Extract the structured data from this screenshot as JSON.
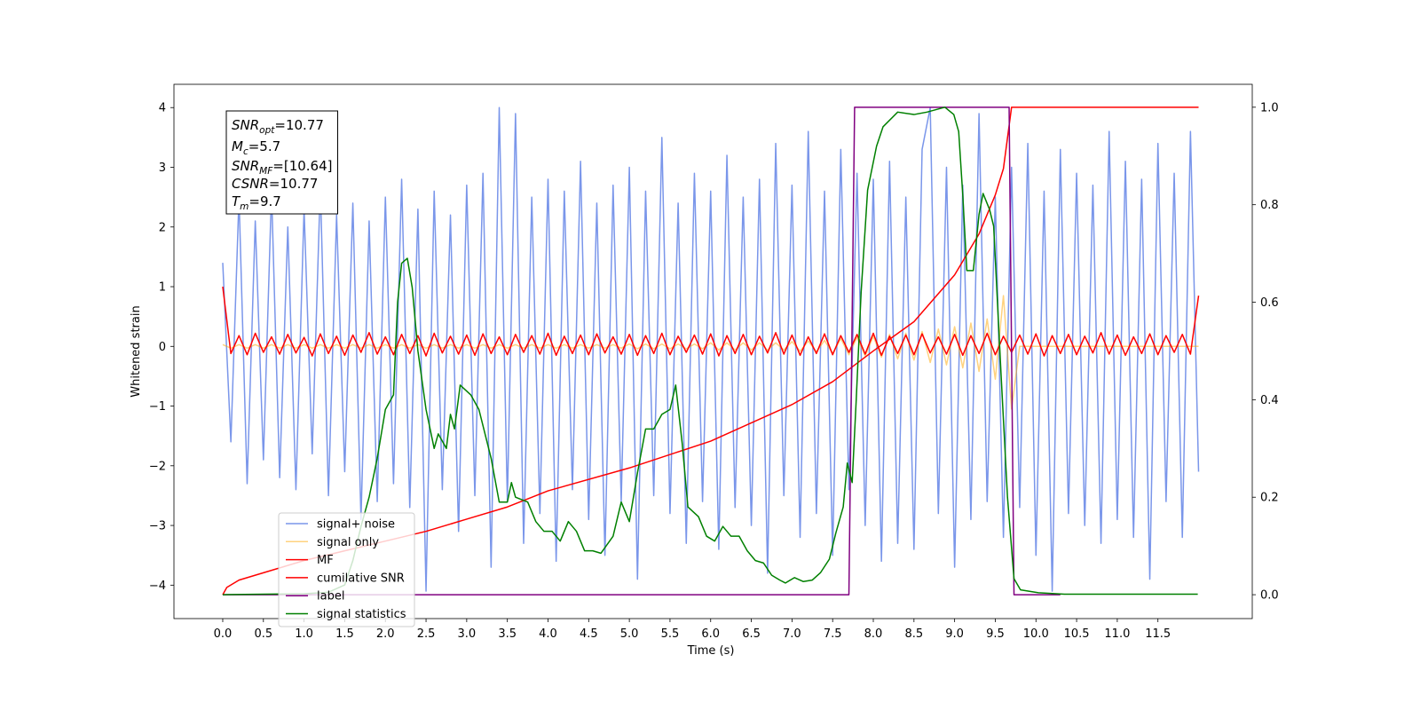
{
  "chart_data": {
    "type": "line",
    "xlabel": "Time (s)",
    "ylabel": "Whitened strain",
    "xlim": [
      -0.6,
      12.66
    ],
    "ylim": [
      -4.56,
      4.39
    ],
    "y2lim": [
      -0.049,
      1.047
    ],
    "xticks": [
      {
        "value": 0,
        "label": "0.0"
      },
      0.5,
      {
        "value": 1,
        "label": "1.0"
      },
      1.5,
      {
        "value": 2,
        "label": "2.0"
      },
      2.5,
      {
        "value": 3,
        "label": "3.0"
      },
      3.5,
      {
        "value": 4,
        "label": "4.0"
      },
      4.5,
      {
        "value": 5,
        "label": "5.0"
      },
      5.5,
      {
        "value": 6,
        "label": "6.0"
      },
      6.5,
      {
        "value": 7,
        "label": "7.0"
      },
      7.5,
      {
        "value": 8,
        "label": "8.0"
      },
      8.5,
      {
        "value": 9,
        "label": "9.0"
      },
      9.5,
      {
        "value": 10,
        "label": "10.0"
      },
      10.5,
      {
        "value": 11,
        "label": "11.0"
      },
      11.5
    ],
    "yticks": [
      {
        "value": -4,
        "label": "−4"
      },
      {
        "value": -3,
        "label": "−3"
      },
      {
        "value": -2,
        "label": "−2"
      },
      {
        "value": -1,
        "label": "−1"
      },
      0,
      1,
      2,
      3,
      4
    ],
    "y2ticks": [
      {
        "value": 0,
        "label": "0.0"
      },
      0.2,
      0.4,
      0.6,
      0.8,
      {
        "value": 1,
        "label": "1.0"
      }
    ],
    "legend": "lower left",
    "annotations": [
      {
        "symbol": "SNR",
        "subscript": "opt",
        "text": "=10.77"
      },
      {
        "symbol": "M",
        "subscript": "c",
        "text": "=5.7"
      },
      {
        "symbol": "SNR",
        "subscript": "MF",
        "text": "=[10.64]"
      },
      {
        "symbol": "CSNR",
        "text": "=10.77"
      },
      {
        "symbol": "T",
        "subscript": "m",
        "text": "=9.7"
      }
    ],
    "x": [
      0,
      0.1,
      0.2,
      0.3,
      0.4,
      0.5,
      0.6,
      0.7,
      0.8,
      0.9,
      1,
      1.1,
      1.2,
      1.3,
      1.4,
      1.5,
      1.6,
      1.7,
      1.8,
      1.9,
      2,
      2.1,
      2.2,
      2.3,
      2.4,
      2.5,
      2.6,
      2.7,
      2.8,
      2.9,
      3,
      3.1,
      3.2,
      3.3,
      3.4,
      3.5,
      3.6,
      3.7,
      3.8,
      3.9,
      4,
      4.1,
      4.2,
      4.3,
      4.4,
      4.5,
      4.6,
      4.7,
      4.8,
      4.9,
      5,
      5.1,
      5.2,
      5.3,
      5.4,
      5.5,
      5.6,
      5.7,
      5.8,
      5.9,
      6,
      6.1,
      6.2,
      6.3,
      6.4,
      6.5,
      6.6,
      6.7,
      6.8,
      6.9,
      7,
      7.1,
      7.2,
      7.3,
      7.4,
      7.5,
      7.6,
      7.7,
      7.8,
      7.9,
      8,
      8.1,
      8.2,
      8.3,
      8.4,
      8.5,
      8.6,
      8.7,
      8.8,
      8.9,
      9,
      9.1,
      9.2,
      9.3,
      9.4,
      9.5,
      9.6,
      9.7,
      9.8,
      9.9,
      10,
      10.1,
      10.2,
      10.3,
      10.4,
      10.5,
      10.6,
      10.7,
      10.8,
      10.9,
      11,
      11.1,
      11.2,
      11.3,
      11.4,
      11.5,
      11.6,
      11.7,
      11.8,
      11.9,
      12
    ],
    "series": [
      {
        "name": "signal+ noise",
        "color": "#4169e1",
        "alpha": 0.7,
        "values": [
          1.4,
          -1.6,
          2.5,
          -2.3,
          2.1,
          -1.9,
          2.6,
          -2.2,
          2.0,
          -2.4,
          2.3,
          -1.8,
          2.7,
          -2.5,
          2.2,
          -2.1,
          2.4,
          -2.9,
          2.1,
          -2.6,
          2.5,
          -2.3,
          2.8,
          -2.7,
          2.3,
          -4.1,
          2.6,
          -2.4,
          2.2,
          -3.1,
          2.7,
          -2.5,
          2.9,
          -3.7,
          4.0,
          -2.6,
          3.9,
          -3.3,
          2.5,
          -2.8,
          2.8,
          -3.6,
          2.6,
          -2.4,
          3.1,
          -2.9,
          2.4,
          -3.5,
          2.7,
          -2.6,
          3.0,
          -3.9,
          2.6,
          -2.5,
          3.5,
          -2.8,
          2.4,
          -3.3,
          2.9,
          -2.6,
          2.6,
          -3.4,
          3.2,
          -2.7,
          2.5,
          -3.0,
          2.8,
          -3.8,
          3.4,
          -2.5,
          2.7,
          -3.2,
          3.6,
          -2.8,
          2.6,
          -3.5,
          3.3,
          -2.4,
          2.9,
          -3.0,
          2.8,
          -3.6,
          3.1,
          -3.3,
          2.5,
          -3.4,
          3.3,
          4.0,
          -2.8,
          3.0,
          -3.7,
          2.7,
          -2.9,
          3.9,
          -2.6,
          2.5,
          -3.2,
          3.0,
          -2.7,
          3.4,
          -3.5,
          2.6,
          -4.1,
          3.3,
          -2.8,
          2.9,
          -3.0,
          2.7,
          -3.3,
          3.6,
          -2.9,
          3.1,
          -3.2,
          2.8,
          -3.9,
          3.4,
          -2.6,
          2.9,
          -3.2,
          3.6,
          -2.1
        ]
      },
      {
        "name": "signal only",
        "color": "#ffa500",
        "alpha": 0.5,
        "values": [
          0.03,
          -0.03,
          0.03,
          -0.03,
          0.03,
          -0.03,
          0.03,
          -0.03,
          0.03,
          -0.03,
          0.03,
          -0.03,
          0.03,
          -0.03,
          0.03,
          -0.03,
          0.03,
          -0.03,
          0.03,
          -0.03,
          0.03,
          -0.03,
          0.03,
          -0.03,
          0.03,
          -0.03,
          0.03,
          -0.03,
          0.03,
          -0.03,
          0.03,
          -0.03,
          0.03,
          -0.03,
          0.03,
          -0.03,
          0.03,
          -0.03,
          0.03,
          -0.03,
          0.03,
          -0.03,
          0.03,
          -0.03,
          0.03,
          -0.03,
          0.03,
          -0.03,
          0.03,
          -0.03,
          0.04,
          -0.04,
          0.04,
          -0.04,
          0.04,
          -0.04,
          0.04,
          -0.04,
          0.04,
          -0.04,
          0.06,
          -0.06,
          0.06,
          -0.06,
          0.06,
          -0.06,
          0.06,
          -0.06,
          0.06,
          -0.06,
          0.08,
          -0.08,
          0.09,
          -0.09,
          0.1,
          -0.12,
          0.13,
          -0.14,
          0.15,
          -0.16,
          0.17,
          -0.18,
          0.2,
          -0.21,
          0.22,
          -0.23,
          0.25,
          -0.27,
          0.29,
          -0.31,
          0.33,
          -0.36,
          0.39,
          -0.42,
          0.46,
          -0.55,
          0.85,
          -1.05,
          0,
          0,
          0,
          0,
          0,
          0,
          0,
          0,
          0,
          0,
          0,
          0,
          0,
          0,
          0,
          0,
          0,
          0,
          0,
          0,
          0,
          0,
          0
        ]
      },
      {
        "name": "MF",
        "color": "#ff0000",
        "alpha": 1,
        "values": [
          1.0,
          -0.12,
          0.18,
          -0.14,
          0.22,
          -0.1,
          0.16,
          -0.13,
          0.2,
          -0.11,
          0.15,
          -0.16,
          0.21,
          -0.12,
          0.17,
          -0.15,
          0.19,
          -0.1,
          0.23,
          -0.13,
          0.16,
          -0.14,
          0.2,
          -0.12,
          0.18,
          -0.16,
          0.22,
          -0.11,
          0.17,
          -0.13,
          0.19,
          -0.15,
          0.21,
          -0.12,
          0.16,
          -0.14,
          0.2,
          -0.1,
          0.18,
          -0.13,
          0.22,
          -0.15,
          0.17,
          -0.12,
          0.19,
          -0.14,
          0.21,
          -0.11,
          0.16,
          -0.13,
          0.2,
          -0.15,
          0.18,
          -0.12,
          0.22,
          -0.14,
          0.17,
          -0.1,
          0.19,
          -0.13,
          0.21,
          -0.16,
          0.18,
          -0.12,
          0.2,
          -0.14,
          0.17,
          -0.11,
          0.23,
          -0.13,
          0.19,
          -0.15,
          0.16,
          -0.12,
          0.21,
          -0.14,
          0.18,
          -0.1,
          0.2,
          -0.13,
          0.22,
          -0.15,
          0.17,
          -0.12,
          0.19,
          -0.14,
          0.21,
          -0.11,
          0.16,
          -0.13,
          0.2,
          -0.15,
          0.18,
          -0.12,
          0.22,
          -0.14,
          0.17,
          -0.1,
          0.19,
          -0.13,
          0.21,
          -0.16,
          0.18,
          -0.12,
          0.2,
          -0.14,
          0.17,
          -0.11,
          0.23,
          -0.13,
          0.19,
          -0.15,
          0.16,
          -0.12,
          0.21,
          -0.14,
          0.18,
          -0.1,
          0.2,
          -0.13,
          0.85
        ]
      },
      {
        "name": "cumilative SNR",
        "color": "#ff0000",
        "alpha": 1,
        "axis": "y2",
        "x": [
          0,
          0.05,
          0.2,
          0.5,
          1,
          1.5,
          2,
          2.5,
          3,
          3.5,
          4,
          5,
          6,
          7,
          7.5,
          8,
          8.5,
          9,
          9.3,
          9.5,
          9.6,
          9.7,
          12.0
        ],
        "values": [
          0,
          0.015,
          0.03,
          0.045,
          0.07,
          0.09,
          0.11,
          0.13,
          0.155,
          0.18,
          0.213,
          0.26,
          0.315,
          0.39,
          0.437,
          0.5,
          0.56,
          0.656,
          0.74,
          0.82,
          0.874,
          1.0,
          1.0
        ]
      },
      {
        "name": "label",
        "color": "#800080",
        "alpha": 1,
        "axis": "y2",
        "x": [
          0,
          7.7,
          7.77,
          9.67,
          9.73,
          10.3
        ],
        "values": [
          0,
          0,
          1,
          1,
          0,
          0
        ]
      },
      {
        "name": "signal statistics",
        "color": "#008000",
        "alpha": 1,
        "axis": "y2",
        "x": [
          0,
          0.5,
          1.0,
          1.3,
          1.5,
          1.6,
          1.7,
          1.8,
          1.9,
          2.0,
          2.1,
          2.15,
          2.2,
          2.27,
          2.33,
          2.4,
          2.5,
          2.6,
          2.65,
          2.75,
          2.8,
          2.85,
          2.92,
          3.05,
          3.15,
          3.3,
          3.4,
          3.5,
          3.55,
          3.6,
          3.75,
          3.85,
          3.95,
          4.05,
          4.15,
          4.25,
          4.35,
          4.45,
          4.55,
          4.65,
          4.8,
          4.9,
          5.0,
          5.1,
          5.2,
          5.3,
          5.4,
          5.5,
          5.57,
          5.65,
          5.72,
          5.85,
          5.95,
          6.05,
          6.15,
          6.25,
          6.35,
          6.45,
          6.55,
          6.65,
          6.75,
          6.85,
          6.92,
          7.03,
          7.14,
          7.25,
          7.35,
          7.46,
          7.54,
          7.63,
          7.68,
          7.74,
          7.79,
          7.85,
          7.93,
          8.04,
          8.12,
          8.3,
          8.5,
          8.66,
          8.88,
          8.99,
          9.05,
          9.1,
          9.15,
          9.23,
          9.3,
          9.35,
          9.43,
          9.48,
          9.57,
          9.65,
          9.73,
          9.81,
          10.03,
          10.35,
          11.99
        ],
        "values": [
          0,
          0.001,
          0.002,
          0.005,
          0.02,
          0.07,
          0.14,
          0.2,
          0.28,
          0.38,
          0.41,
          0.6,
          0.68,
          0.69,
          0.63,
          0.5,
          0.38,
          0.3,
          0.33,
          0.3,
          0.37,
          0.34,
          0.43,
          0.41,
          0.38,
          0.28,
          0.19,
          0.19,
          0.23,
          0.2,
          0.19,
          0.15,
          0.13,
          0.13,
          0.11,
          0.15,
          0.13,
          0.09,
          0.09,
          0.085,
          0.12,
          0.19,
          0.15,
          0.25,
          0.34,
          0.34,
          0.37,
          0.38,
          0.43,
          0.31,
          0.18,
          0.16,
          0.12,
          0.11,
          0.14,
          0.12,
          0.12,
          0.09,
          0.07,
          0.065,
          0.04,
          0.03,
          0.024,
          0.035,
          0.027,
          0.03,
          0.045,
          0.073,
          0.127,
          0.18,
          0.27,
          0.23,
          0.4,
          0.62,
          0.83,
          0.92,
          0.96,
          0.99,
          0.985,
          0.99,
          1.0,
          0.985,
          0.95,
          0.82,
          0.665,
          0.665,
          0.78,
          0.823,
          0.79,
          0.756,
          0.455,
          0.2,
          0.033,
          0.01,
          0.004,
          0.001,
          0.001
        ]
      }
    ]
  }
}
